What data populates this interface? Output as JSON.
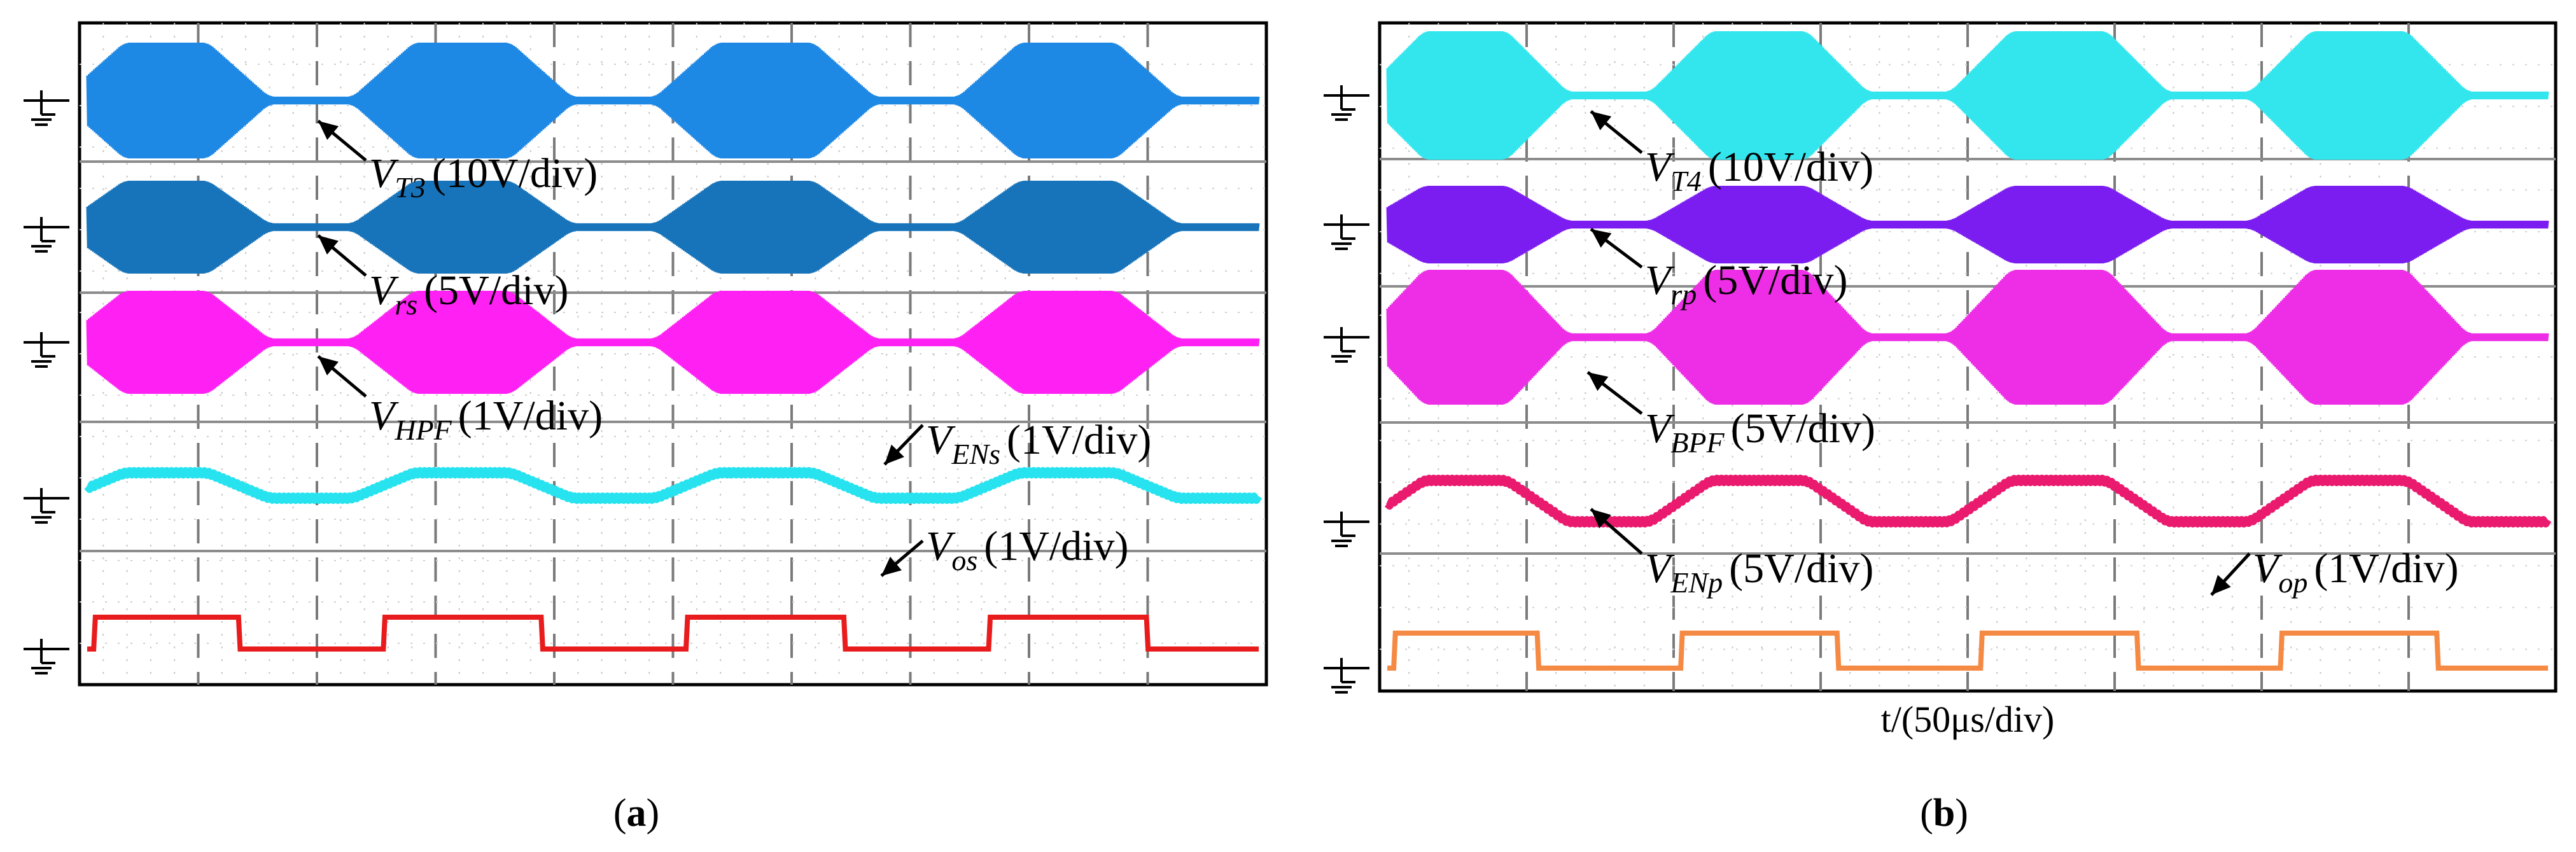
{
  "chart_data": [
    {
      "type": "line",
      "panel_label": "a",
      "title": "",
      "xlabel": "",
      "grid": true,
      "divisions_x": 10,
      "divisions_y": 8,
      "envelope": [
        0,
        1,
        1,
        1,
        1,
        1,
        1,
        1,
        1,
        1,
        1,
        1,
        0,
        0,
        0,
        0,
        0,
        0,
        0,
        0,
        0,
        0,
        0,
        1,
        1,
        1,
        1,
        1,
        1,
        1,
        1,
        1,
        1,
        1,
        1,
        0,
        0,
        0,
        0,
        0,
        0,
        0,
        0,
        0,
        0,
        0,
        1,
        1,
        1,
        1,
        1,
        1,
        1,
        1,
        1,
        1,
        1,
        1,
        0,
        0,
        0,
        0,
        0,
        0,
        0,
        0,
        0,
        0,
        0,
        1,
        1,
        1,
        1,
        1,
        1,
        1,
        1,
        1,
        1,
        1,
        1,
        0,
        0,
        0,
        0,
        0,
        0,
        0,
        0,
        0
      ],
      "series": [
        {
          "name": "V_T3",
          "main": "V",
          "sub": "T3",
          "scale": "(10V/div)",
          "color": "#1e88e5",
          "kind": "burst"
        },
        {
          "name": "V_rs",
          "main": "V",
          "sub": "rs",
          "scale": "(5V/div)",
          "color": "#1774ba",
          "kind": "burst"
        },
        {
          "name": "V_HPF",
          "main": "V",
          "sub": "HPF",
          "scale": "(1V/div)",
          "color": "#ff20f4",
          "kind": "burst"
        },
        {
          "name": "V_ENs",
          "main": "V",
          "sub": "ENs",
          "scale": "(1V/div)",
          "color": "#27e3ef",
          "kind": "envelope"
        },
        {
          "name": "V_os",
          "main": "V",
          "sub": "os",
          "scale": "(1V/div)",
          "color": "#e81c1c",
          "kind": "square"
        }
      ]
    },
    {
      "type": "line",
      "panel_label": "b",
      "title": "",
      "xlabel": "t/(50μs/div)",
      "grid": true,
      "divisions_x": 8,
      "divisions_y": 8,
      "envelope": [
        0,
        1,
        1,
        1,
        1,
        1,
        1,
        1,
        1,
        1,
        1,
        1,
        0,
        0,
        0,
        0,
        0,
        0,
        0,
        0,
        0,
        0,
        0,
        1,
        1,
        1,
        1,
        1,
        1,
        1,
        1,
        1,
        1,
        1,
        1,
        0,
        0,
        0,
        0,
        0,
        0,
        0,
        0,
        0,
        0,
        0,
        1,
        1,
        1,
        1,
        1,
        1,
        1,
        1,
        1,
        1,
        1,
        1,
        0,
        0,
        0,
        0,
        0,
        0,
        0,
        0,
        0,
        0,
        0,
        1,
        1,
        1,
        1,
        1,
        1,
        1,
        1,
        1,
        1,
        1,
        1,
        0,
        0,
        0,
        0,
        0,
        0,
        0,
        0,
        0
      ],
      "series": [
        {
          "name": "V_T4",
          "main": "V",
          "sub": "T4",
          "scale": "(10V/div)",
          "color": "#33e6ee",
          "kind": "burst"
        },
        {
          "name": "V_rp",
          "main": "V",
          "sub": "rp",
          "scale": "(5V/div)",
          "color": "#7b1cf0",
          "kind": "burst"
        },
        {
          "name": "V_BPF",
          "main": "V",
          "sub": "BPF",
          "scale": "(5V/div)",
          "color": "#ee2ee6",
          "kind": "burst"
        },
        {
          "name": "V_ENp",
          "main": "V",
          "sub": "ENp",
          "scale": "(5V/div)",
          "color": "#ea1a6e",
          "kind": "envelope"
        },
        {
          "name": "V_op",
          "main": "V",
          "sub": "op",
          "scale": "(1V/div)",
          "color": "#f58a45",
          "kind": "square"
        }
      ]
    }
  ]
}
